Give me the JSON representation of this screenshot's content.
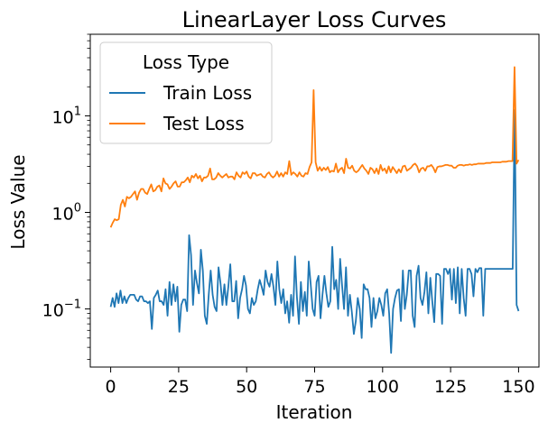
{
  "chart_data": {
    "type": "line",
    "title": "LinearLayer Loss Curves",
    "xlabel": "Iteration",
    "ylabel": "Loss Value",
    "yscale": "log",
    "xlim": [
      -7.5,
      157.5
    ],
    "ylim": [
      0.025,
      70
    ],
    "xticks": [
      0,
      25,
      50,
      75,
      100,
      125,
      150
    ],
    "yticks": [
      {
        "value": 0.1,
        "base": "10",
        "exp": "−1"
      },
      {
        "value": 1,
        "base": "10",
        "exp": "0"
      },
      {
        "value": 10,
        "base": "10",
        "exp": "1"
      }
    ],
    "grid": false,
    "legend": {
      "title": "Loss Type",
      "position": "top-left"
    },
    "series": [
      {
        "name": "Train Loss",
        "color": "#1f77b4",
        "values": [
          0.105,
          0.13,
          0.105,
          0.145,
          0.115,
          0.155,
          0.115,
          0.135,
          0.115,
          0.13,
          0.14,
          0.14,
          0.14,
          0.125,
          0.12,
          0.135,
          0.135,
          0.12,
          0.12,
          0.115,
          0.12,
          0.062,
          0.13,
          0.14,
          0.155,
          0.12,
          0.12,
          0.11,
          0.16,
          0.085,
          0.19,
          0.11,
          0.18,
          0.12,
          0.17,
          0.058,
          0.11,
          0.125,
          0.125,
          0.095,
          0.58,
          0.36,
          0.11,
          0.25,
          0.185,
          0.145,
          0.41,
          0.25,
          0.085,
          0.07,
          0.14,
          0.25,
          0.14,
          0.105,
          0.095,
          0.27,
          0.185,
          0.11,
          0.18,
          0.11,
          0.17,
          0.29,
          0.12,
          0.12,
          0.195,
          0.08,
          0.13,
          0.16,
          0.22,
          0.175,
          0.1,
          0.09,
          0.13,
          0.11,
          0.12,
          0.16,
          0.2,
          0.17,
          0.14,
          0.25,
          0.19,
          0.17,
          0.23,
          0.17,
          0.11,
          0.31,
          0.16,
          0.115,
          0.16,
          0.09,
          0.12,
          0.072,
          0.14,
          0.085,
          0.35,
          0.13,
          0.07,
          0.19,
          0.095,
          0.15,
          0.085,
          0.31,
          0.18,
          0.1,
          0.085,
          0.19,
          0.22,
          0.08,
          0.14,
          0.22,
          0.145,
          0.105,
          0.12,
          0.44,
          0.16,
          0.2,
          0.1,
          0.33,
          0.175,
          0.1,
          0.27,
          0.085,
          0.14,
          0.092,
          0.055,
          0.075,
          0.13,
          0.1,
          0.05,
          0.18,
          0.16,
          0.16,
          0.13,
          0.065,
          0.13,
          0.08,
          0.095,
          0.13,
          0.11,
          0.085,
          0.145,
          0.16,
          0.09,
          0.035,
          0.1,
          0.13,
          0.155,
          0.16,
          0.075,
          0.25,
          0.1,
          0.14,
          0.25,
          0.25,
          0.085,
          0.065,
          0.22,
          0.28,
          0.13,
          0.11,
          0.15,
          0.24,
          0.09,
          0.21,
          0.12,
          0.073,
          0.23,
          0.23,
          0.22,
          0.07,
          0.26,
          0.26,
          0.23,
          0.26,
          0.125,
          0.26,
          0.115,
          0.27,
          0.09,
          0.26,
          0.13,
          0.085,
          0.26,
          0.26,
          0.23,
          0.135,
          0.26,
          0.24,
          0.265,
          0.265,
          0.085,
          0.26,
          0.26,
          0.26,
          0.26,
          0.26,
          0.26,
          0.26,
          0.26,
          0.26,
          0.26,
          0.26,
          0.26,
          0.26,
          0.26,
          0.26,
          11.5,
          0.11,
          0.095
        ]
      },
      {
        "name": "Test Loss",
        "color": "#ff7f0e",
        "values": [
          0.7,
          0.78,
          0.85,
          0.83,
          0.85,
          1.2,
          1.35,
          1.15,
          1.45,
          1.4,
          1.45,
          1.55,
          1.65,
          1.35,
          1.6,
          1.75,
          1.75,
          1.6,
          1.55,
          1.75,
          1.95,
          1.65,
          1.7,
          1.85,
          1.9,
          1.65,
          2.25,
          2.0,
          1.95,
          1.75,
          1.85,
          2.0,
          2.1,
          1.85,
          1.85,
          2.05,
          2.05,
          2.15,
          2.3,
          2.05,
          2.4,
          2.3,
          2.5,
          2.25,
          2.4,
          2.1,
          2.3,
          2.3,
          2.4,
          2.85,
          2.2,
          2.2,
          2.3,
          2.55,
          2.4,
          2.3,
          2.4,
          2.5,
          2.3,
          2.35,
          2.35,
          2.2,
          2.6,
          2.4,
          2.3,
          2.6,
          2.5,
          2.65,
          2.35,
          2.25,
          2.55,
          2.55,
          2.4,
          2.45,
          2.5,
          2.35,
          2.3,
          2.5,
          2.6,
          2.4,
          2.3,
          2.4,
          2.65,
          2.35,
          2.55,
          2.35,
          2.6,
          2.5,
          3.4,
          2.45,
          2.6,
          2.5,
          2.35,
          2.6,
          2.4,
          2.35,
          2.55,
          2.5,
          2.95,
          3.3,
          18.5,
          3.3,
          2.7,
          2.95,
          2.7,
          2.9,
          2.75,
          2.95,
          2.6,
          2.7,
          2.65,
          3.2,
          2.6,
          2.8,
          2.9,
          2.55,
          3.6,
          2.9,
          2.85,
          3.05,
          2.7,
          2.6,
          2.7,
          2.9,
          3.1,
          2.85,
          2.7,
          2.5,
          2.9,
          2.8,
          2.55,
          2.85,
          2.5,
          3.1,
          2.7,
          2.85,
          2.55,
          3.0,
          2.6,
          2.95,
          2.75,
          2.55,
          2.8,
          2.6,
          3.0,
          3.05,
          2.7,
          2.8,
          2.9,
          3.1,
          3.2,
          3.0,
          2.6,
          2.85,
          2.9,
          2.7,
          3.0,
          3.0,
          3.1,
          2.9,
          2.6,
          2.95,
          3.0,
          3.0,
          3.05,
          3.1,
          3.1,
          3.05,
          3.05,
          2.9,
          2.9,
          3.05,
          3.1,
          3.1,
          3.05,
          3.1,
          3.1,
          3.15,
          3.1,
          3.15,
          3.15,
          3.2,
          3.2,
          3.2,
          3.2,
          3.25,
          3.25,
          3.25,
          3.3,
          3.3,
          3.3,
          3.3,
          3.3,
          3.35,
          3.35,
          3.35,
          3.4,
          3.4,
          3.4,
          32.0,
          3.2,
          3.5
        ]
      }
    ]
  }
}
